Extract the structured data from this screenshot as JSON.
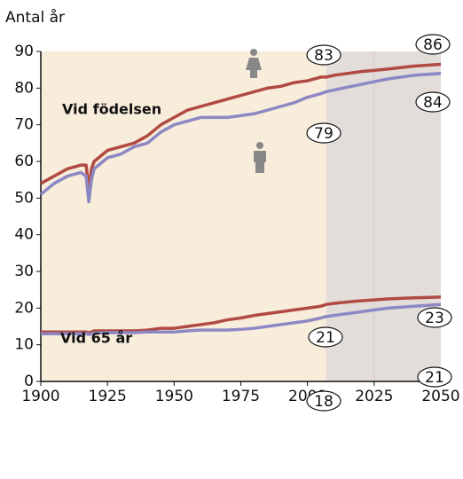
{
  "chart_data": {
    "type": "line",
    "ylabel": "Antal år",
    "x": [
      1900,
      1905,
      1910,
      1915,
      1917,
      1918,
      1919,
      1920,
      1925,
      1930,
      1935,
      1940,
      1945,
      1950,
      1955,
      1960,
      1965,
      1970,
      1975,
      1980,
      1985,
      1990,
      1995,
      2000,
      2005,
      2007,
      2010,
      2020,
      2030,
      2040,
      2050
    ],
    "series": [
      {
        "color": "#b04a42",
        "values": [
          54,
          56,
          58,
          59,
          59,
          52,
          58,
          60,
          63,
          64,
          65,
          67,
          70,
          72,
          74,
          75,
          76,
          77,
          78,
          79,
          80,
          80.5,
          81.5,
          82,
          83,
          83,
          83.5,
          84.5,
          85.2,
          86,
          86.5
        ]
      },
      {
        "color": "#8c88c4",
        "values": [
          51,
          54,
          56,
          57,
          56,
          49,
          55,
          58,
          61,
          62,
          64,
          65,
          68,
          70,
          71,
          72,
          72,
          72,
          72.5,
          73,
          74,
          75,
          76,
          77.5,
          78.5,
          79,
          79.5,
          81,
          82.5,
          83.5,
          84
        ]
      },
      {
        "color": "#b04a42",
        "values": [
          13.5,
          13.5,
          13.5,
          13.5,
          13.5,
          13.3,
          13.5,
          13.8,
          13.8,
          13.8,
          13.8,
          14,
          14.5,
          14.5,
          15,
          15.5,
          16,
          16.8,
          17.3,
          18,
          18.5,
          19,
          19.5,
          20,
          20.5,
          21,
          21.3,
          22,
          22.5,
          22.8,
          23
        ]
      },
      {
        "color": "#8c88c4",
        "values": [
          13,
          13,
          13,
          13,
          13,
          12.8,
          13,
          13.2,
          13.3,
          13.3,
          13.3,
          13.5,
          13.5,
          13.5,
          13.8,
          14,
          14,
          14,
          14.2,
          14.5,
          15,
          15.5,
          16,
          16.5,
          17.3,
          17.7,
          18,
          19,
          20,
          20.5,
          21
        ]
      }
    ],
    "annotations": [
      "83",
      "86",
      "84",
      "79",
      "21",
      "23",
      "21",
      "18",
      "Vid födelsen",
      "Vid 65 år"
    ],
    "forecast_from": 2007,
    "xlim": [
      1900,
      2050
    ],
    "xticks": [
      1900,
      1925,
      1950,
      1975,
      2000,
      2025,
      2050
    ],
    "ylim": [
      0,
      90
    ],
    "yticks": [
      0,
      10,
      20,
      30,
      40,
      50,
      60,
      70,
      80,
      90
    ]
  }
}
